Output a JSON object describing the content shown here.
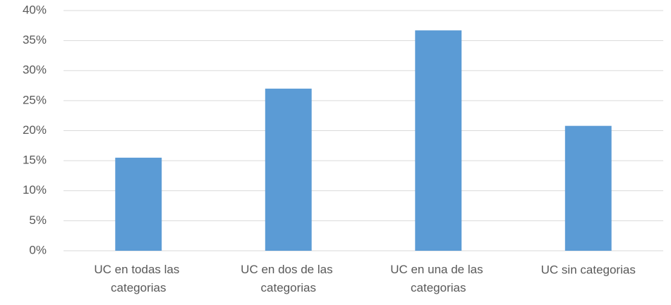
{
  "chart_data": {
    "type": "bar",
    "categories": [
      "UC en todas las categorias",
      "UC en dos de las categorias",
      "UC en una de las categorias",
      "UC sin categorias"
    ],
    "values": [
      15.5,
      27,
      36.7,
      20.8
    ],
    "color": "#5b9bd5",
    "ylim": [
      0,
      40
    ],
    "yticks": [
      {
        "value": 0,
        "label": "0%"
      },
      {
        "value": 5,
        "label": "5%"
      },
      {
        "value": 10,
        "label": "10%"
      },
      {
        "value": 15,
        "label": "15%"
      },
      {
        "value": 20,
        "label": "20%"
      },
      {
        "value": 25,
        "label": "25%"
      },
      {
        "value": 30,
        "label": "30%"
      },
      {
        "value": 35,
        "label": "35%"
      },
      {
        "value": 40,
        "label": "40%"
      }
    ],
    "grid": true
  }
}
